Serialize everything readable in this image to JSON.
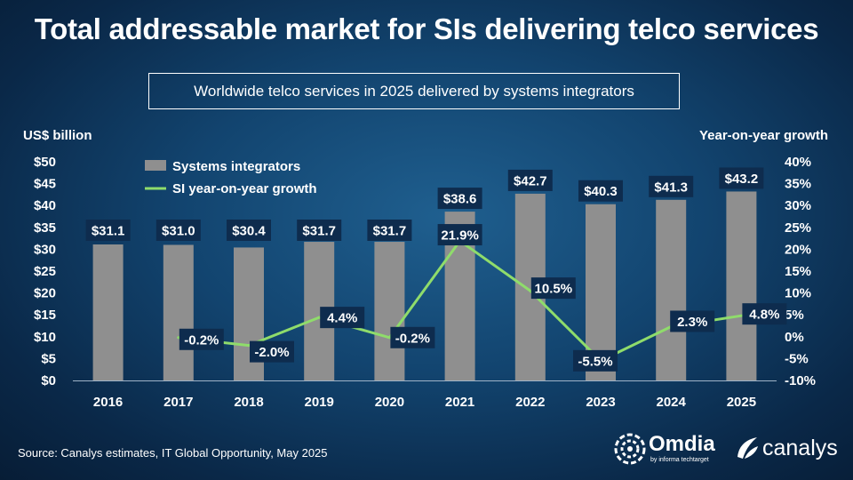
{
  "title": "Total addressable market for SIs delivering telco services",
  "subtitle": "Worldwide telco services in 2025 delivered by systems integrators",
  "source": "Source: Canalys estimates, IT Global Opportunity, May 2025",
  "logos": {
    "omdia": "Omdia",
    "omdia_tagline": "by informa techtarget",
    "canalys": "canalys"
  },
  "chart_data": {
    "type": "bar",
    "categories": [
      "2016",
      "2017",
      "2018",
      "2019",
      "2020",
      "2021",
      "2022",
      "2023",
      "2024",
      "2025"
    ],
    "series": [
      {
        "name": "Systems integrators",
        "type": "bar",
        "axis": "left",
        "values": [
          31.1,
          31.0,
          30.4,
          31.7,
          31.7,
          38.6,
          42.7,
          40.3,
          41.3,
          43.2
        ],
        "labels": [
          "$31.1",
          "$31.0",
          "$30.4",
          "$31.7",
          "$31.7",
          "$38.6",
          "$42.7",
          "$40.3",
          "$41.3",
          "$43.2"
        ],
        "color": "#8f8f8f"
      },
      {
        "name": "SI year-on-year growth",
        "type": "line",
        "axis": "right",
        "values": [
          null,
          -0.2,
          -2.0,
          4.4,
          -0.2,
          21.9,
          10.5,
          -5.5,
          2.3,
          4.8
        ],
        "labels": [
          "",
          "-0.2%",
          "-2.0%",
          "4.4%",
          "-0.2%",
          "21.9%",
          "10.5%",
          "-5.5%",
          "2.3%",
          "4.8%"
        ],
        "color": "#8fdc6b"
      }
    ],
    "ylabel_left": "US$ billion",
    "ylabel_right": "Year-on-year growth",
    "ylim_left": [
      0,
      50
    ],
    "ylim_right": [
      -10,
      40
    ],
    "yticks_left": [
      "$0",
      "$5",
      "$10",
      "$15",
      "$20",
      "$25",
      "$30",
      "$35",
      "$40",
      "$45",
      "$50"
    ],
    "yticks_right": [
      "-10%",
      "-5%",
      "0%",
      "5%",
      "10%",
      "15%",
      "20%",
      "25%",
      "30%",
      "35%",
      "40%"
    ],
    "grid": false,
    "legend": "top-left",
    "colors": {
      "label_box": "#0e2c4e",
      "text": "#ffffff"
    }
  }
}
